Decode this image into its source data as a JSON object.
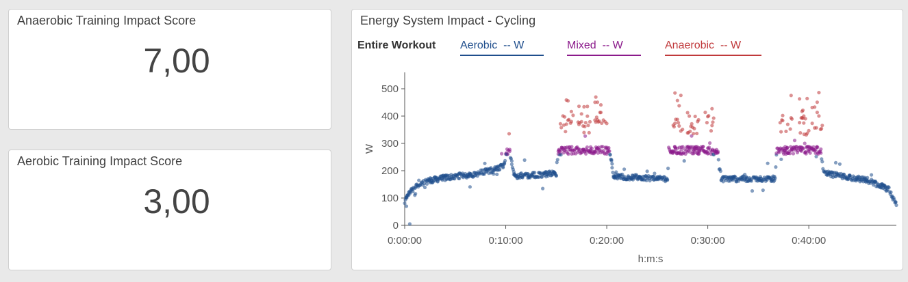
{
  "kpis": {
    "anaerobic": {
      "title": "Anaerobic Training Impact Score",
      "value": "7,00"
    },
    "aerobic": {
      "title": "Aerobic Training Impact Score",
      "value": "3,00"
    }
  },
  "energy_chart": {
    "title": "Energy System Impact - Cycling",
    "legend_label": "Entire Workout",
    "legend": [
      {
        "name": "Aerobic  -- W",
        "color": "#1f4e8c"
      },
      {
        "name": "Mixed  -- W",
        "color": "#8b1a8b"
      },
      {
        "name": "Anaerobic  -- W",
        "color": "#c0393b"
      }
    ]
  },
  "chart_data": {
    "type": "scatter",
    "title": "Energy System Impact - Cycling",
    "xlabel": "h:m:s",
    "ylabel": "W",
    "xlim": [
      0,
      2920
    ],
    "ylim": [
      0,
      560
    ],
    "x_ticks": [
      {
        "value": 0,
        "label": "0:00:00"
      },
      {
        "value": 600,
        "label": "0:10:00"
      },
      {
        "value": 1200,
        "label": "0:20:00"
      },
      {
        "value": 1800,
        "label": "0:30:00"
      },
      {
        "value": 2400,
        "label": "0:40:00"
      }
    ],
    "y_ticks": [
      0,
      100,
      200,
      300,
      400,
      500
    ],
    "series_colors": {
      "aerobic": "#1f4e8c",
      "mixed": "#8b1a8b",
      "anaerobic": "#c0393b"
    },
    "profile": [
      [
        0,
        85
      ],
      [
        30,
        120
      ],
      [
        60,
        140
      ],
      [
        120,
        160
      ],
      [
        200,
        170
      ],
      [
        300,
        180
      ],
      [
        400,
        185
      ],
      [
        500,
        200
      ],
      [
        560,
        210
      ],
      [
        590,
        220
      ],
      [
        600,
        255
      ],
      [
        620,
        280
      ],
      [
        650,
        180
      ],
      [
        900,
        190
      ],
      [
        910,
        270
      ],
      [
        1000,
        275
      ],
      [
        1180,
        275
      ],
      [
        1220,
        270
      ],
      [
        1240,
        180
      ],
      [
        1560,
        170
      ],
      [
        1570,
        275
      ],
      [
        1800,
        275
      ],
      [
        1860,
        270
      ],
      [
        1880,
        170
      ],
      [
        2200,
        170
      ],
      [
        2210,
        275
      ],
      [
        2470,
        275
      ],
      [
        2490,
        190
      ],
      [
        2750,
        165
      ],
      [
        2880,
        130
      ],
      [
        2920,
        70
      ]
    ],
    "anaerobic_bursts": [
      [
        925,
        1000,
        375
      ],
      [
        1030,
        1100,
        370
      ],
      [
        1130,
        1200,
        380
      ],
      [
        1580,
        1650,
        375
      ],
      [
        1680,
        1750,
        370
      ],
      [
        1780,
        1840,
        380
      ],
      [
        2230,
        2300,
        370
      ],
      [
        2340,
        2400,
        365
      ],
      [
        2420,
        2480,
        380
      ]
    ]
  }
}
